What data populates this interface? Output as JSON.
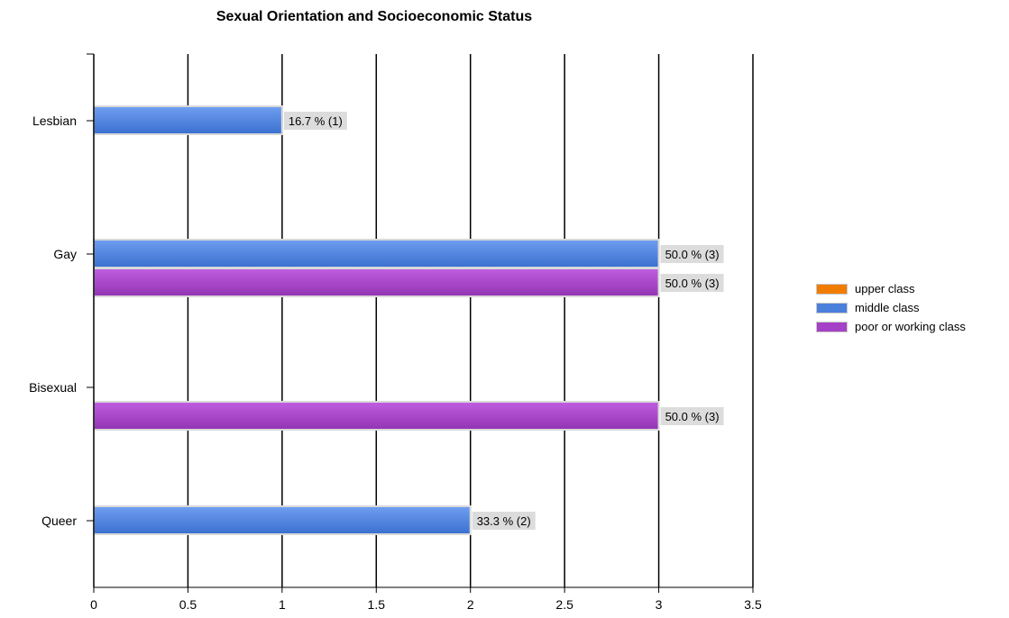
{
  "chart_data": {
    "type": "bar",
    "orientation": "horizontal",
    "title": "Sexual Orientation and Socioeconomic Status",
    "xlabel": "",
    "ylabel": "",
    "xlim": [
      0,
      3.5
    ],
    "x_ticks": [
      "0",
      "0.5",
      "1",
      "1.5",
      "2",
      "2.5",
      "3",
      "3.5"
    ],
    "x_tick_values": [
      0,
      0.5,
      1,
      1.5,
      2,
      2.5,
      3,
      3.5
    ],
    "grid": "vertical",
    "legend_position": "right",
    "categories": [
      "Lesbian",
      "Gay",
      "Bisexual",
      "Queer"
    ],
    "series": [
      {
        "name": "upper class",
        "color": "#f07d00",
        "values": [
          0,
          0,
          0,
          0
        ],
        "labels": [
          "",
          "",
          "",
          ""
        ]
      },
      {
        "name": "middle class",
        "color": "#4a7fdc",
        "values": [
          1,
          3,
          0,
          2
        ],
        "labels": [
          "16.7 % (1)",
          "50.0 % (3)",
          "",
          "33.3 % (2)"
        ]
      },
      {
        "name": "poor or working class",
        "color": "#a541c6",
        "values": [
          0,
          3,
          3,
          0
        ],
        "labels": [
          "",
          "50.0 % (3)",
          "50.0 % (3)",
          ""
        ]
      }
    ]
  }
}
